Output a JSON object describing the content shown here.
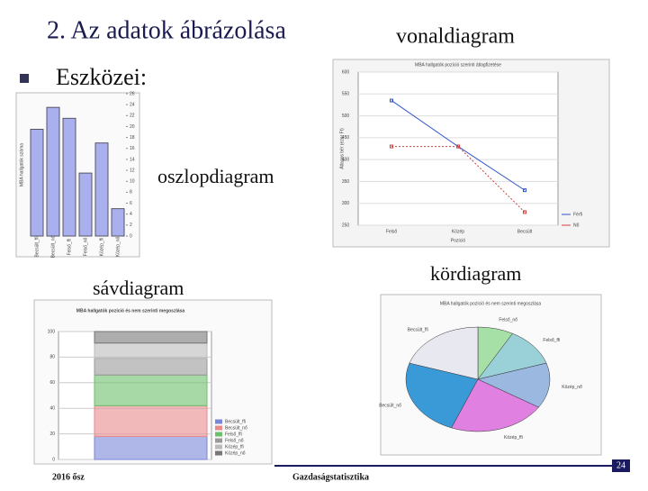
{
  "header": {
    "title": "2. Az adatok ábrázolása",
    "bullet": "Eszközei:"
  },
  "labels": {
    "line": "vonaldiagram",
    "bar": "oszlopdiagram",
    "stacked": "sávdiagram",
    "pie": "kördiagram"
  },
  "footer": {
    "left": "2016 ősz",
    "center": "Gazdaságstatisztika",
    "page": "24"
  },
  "charts": {
    "line": {
      "type": "line",
      "title": "MBA hallgatók pozíció szerinti átlagfizetése",
      "x_label": "Pozíció",
      "y_label": "Átlagos bér (ezer Ft)",
      "categories": [
        "Felső",
        "Közép",
        "Becsült"
      ],
      "series": [
        {
          "name": "Férfi",
          "color": "#3355cc",
          "values": [
            535,
            430,
            330
          ]
        },
        {
          "name": "Nő",
          "color": "#d04040",
          "values": [
            430,
            430,
            280
          ]
        }
      ],
      "ylim": [
        250,
        600
      ],
      "yticks": [
        250,
        300,
        350,
        400,
        450,
        500,
        550,
        600
      ]
    },
    "bar": {
      "type": "bar",
      "y_label": "MBA hallgatók száma",
      "color": "#aab0ee",
      "categories": [
        "Becsült_ffi",
        "Becsült_nő",
        "Felső_ffi",
        "Felső_nő",
        "Közép_ffi",
        "Közép_nő"
      ],
      "values": [
        19.5,
        23.5,
        21.5,
        11.5,
        17,
        5
      ],
      "ylim": [
        0,
        26
      ],
      "yticks": [
        0,
        2,
        4,
        6,
        8,
        10,
        12,
        14,
        16,
        18,
        20,
        22,
        24,
        26
      ]
    },
    "stacked": {
      "type": "stacked_bar",
      "title": "MBA hallgatók pozíció és nem szerinti megoszlása",
      "series": [
        {
          "name": "Becsült_ffi",
          "color": "#7a86d8",
          "values": [
            18
          ]
        },
        {
          "name": "Becsült_nő",
          "color": "#e88a8a",
          "values": [
            24
          ]
        },
        {
          "name": "Felső_ffi",
          "color": "#6cbf6c",
          "values": [
            24
          ]
        },
        {
          "name": "Felső_nő",
          "color": "#9a9a9a",
          "values": [
            13
          ]
        },
        {
          "name": "Közép_ffi",
          "color": "#bbbbbb",
          "values": [
            12
          ]
        },
        {
          "name": "Közép_nő",
          "color": "#777777",
          "values": [
            9
          ]
        }
      ],
      "ylim": [
        0,
        100
      ],
      "yticks": [
        0,
        20,
        40,
        60,
        80,
        100
      ]
    },
    "pie": {
      "type": "pie",
      "title": "MBA hallgatók pozíció és nem szerinti megoszlása",
      "categories": [
        "Felső_nő",
        "Felső_ffi",
        "Közép_nő",
        "Közép_ffi",
        "Becsült_nő",
        "Becsült_ffi"
      ],
      "values": [
        8,
        12,
        14,
        22,
        24,
        20
      ],
      "colors": [
        "#a6e0a6",
        "#9ad0d8",
        "#9ab8e0",
        "#e080e0",
        "#3a9ad8",
        "#e8e8f0"
      ]
    }
  }
}
